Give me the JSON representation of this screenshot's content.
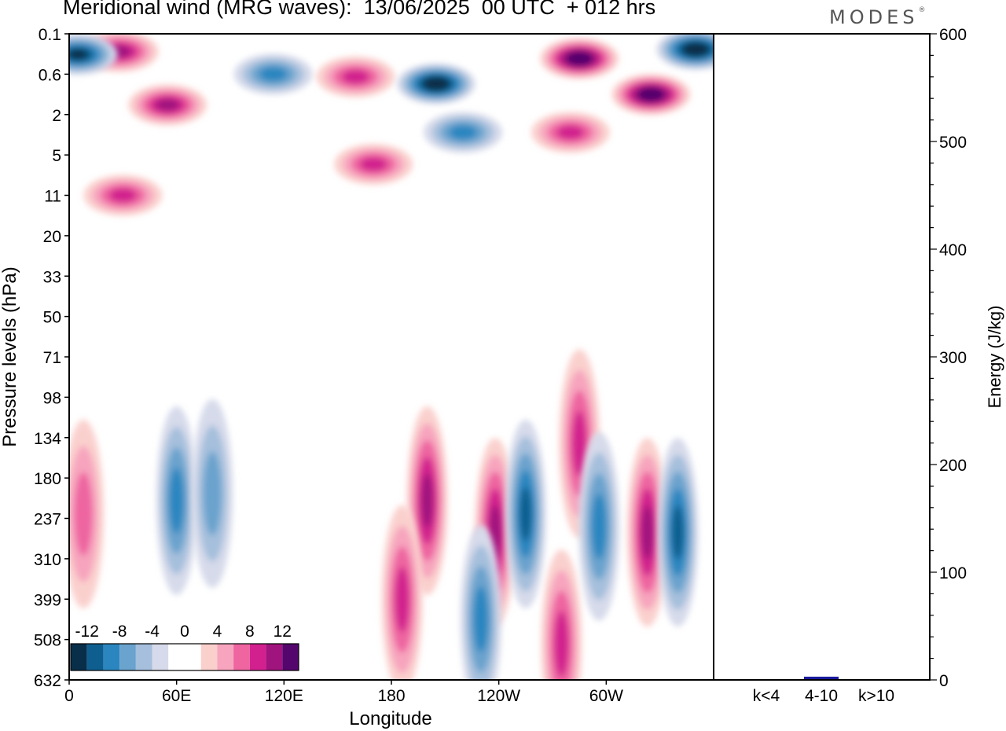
{
  "chart_data": [
    {
      "type": "heatmap",
      "title": "Meridional wind (MRG waves):  13/06/2025  00 UTC  + 012 hrs",
      "xlabel": "Longitude",
      "ylabel": "Pressure levels (hPa)",
      "x_ticks": [
        "0",
        "60E",
        "120E",
        "180",
        "120W",
        "60W"
      ],
      "y_ticks": [
        "0.1",
        "0.6",
        "2",
        "5",
        "11",
        "20",
        "33",
        "50",
        "71",
        "98",
        "134",
        "180",
        "237",
        "310",
        "399",
        "508",
        "632"
      ],
      "xlim_deg": [
        0,
        360
      ],
      "colorbar": {
        "labels": [
          "-12",
          "-8",
          "-4",
          "0",
          "4",
          "8",
          "12"
        ],
        "colors": [
          "#082e4a",
          "#0e5f8f",
          "#2b86c0",
          "#6aa3cd",
          "#a5bfdc",
          "#d6daea",
          "#ffffff",
          "#ffffff",
          "#fad0cd",
          "#f7a4be",
          "#ee65a0",
          "#d2218e",
          "#a0147e",
          "#55066d"
        ]
      },
      "features": [
        {
          "lon": 28,
          "p": 0.22,
          "v": 10
        },
        {
          "lon": 55,
          "p": 1.5,
          "v": 9
        },
        {
          "lon": 114,
          "p": 0.6,
          "v": -8
        },
        {
          "lon": 160,
          "p": 0.65,
          "v": 7
        },
        {
          "lon": 205,
          "p": 0.8,
          "v": -13
        },
        {
          "lon": 220,
          "p": 3,
          "v": -8
        },
        {
          "lon": 285,
          "p": 0.3,
          "v": 13
        },
        {
          "lon": 325,
          "p": 1.1,
          "v": 13
        },
        {
          "lon": 350,
          "p": 0.2,
          "v": -13
        },
        {
          "lon": 5,
          "p": 0.25,
          "v": -12
        },
        {
          "lon": 170,
          "p": 6,
          "v": 7
        },
        {
          "lon": 30,
          "p": 11,
          "v": 8
        },
        {
          "lon": 280,
          "p": 3,
          "v": 7
        },
        {
          "lon": 8,
          "p": 230,
          "v": 6
        },
        {
          "lon": 60,
          "p": 210,
          "v": -7
        },
        {
          "lon": 80,
          "p": 200,
          "v": -6
        },
        {
          "lon": 200,
          "p": 210,
          "v": 9
        },
        {
          "lon": 238,
          "p": 260,
          "v": 10
        },
        {
          "lon": 255,
          "p": 230,
          "v": -10
        },
        {
          "lon": 285,
          "p": 140,
          "v": 8
        },
        {
          "lon": 296,
          "p": 250,
          "v": -7
        },
        {
          "lon": 323,
          "p": 260,
          "v": 10
        },
        {
          "lon": 340,
          "p": 260,
          "v": -10
        },
        {
          "lon": 186,
          "p": 400,
          "v": 7
        },
        {
          "lon": 230,
          "p": 450,
          "v": -8
        },
        {
          "lon": 275,
          "p": 520,
          "v": 8
        }
      ]
    },
    {
      "type": "bar",
      "ylabel": "Energy (J/kg)",
      "categories": [
        "k<4",
        "4-10",
        "k>10"
      ],
      "values": [
        0.5,
        3,
        0
      ],
      "ylim": [
        0,
        600
      ],
      "y_ticks": [
        "0",
        "100",
        "200",
        "300",
        "400",
        "500",
        "600"
      ],
      "bar_color": "#1a1a9e"
    }
  ],
  "brand": {
    "name": "MODES",
    "mark": "®"
  }
}
